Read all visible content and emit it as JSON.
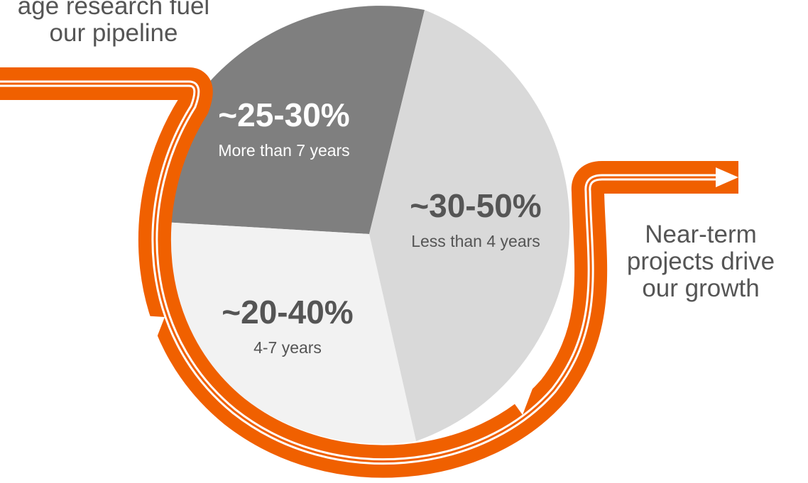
{
  "captions": {
    "left": "age research fuel\nour pipeline",
    "right": "Near-term\nprojects drive\nour growth"
  },
  "slices": {
    "dark": {
      "percent": "~25-30%",
      "label": "More than 7 years",
      "color": "#7f7f7f"
    },
    "mid": {
      "percent": "~30-50%",
      "label": "Less than 4 years",
      "color": "#d9d9d9"
    },
    "light": {
      "percent": "~20-40%",
      "label": "4-7 years",
      "color": "#f2f2f2"
    }
  },
  "colors": {
    "accent": "#f06000",
    "arrow_inner": "#ffffff",
    "text": "#555555"
  },
  "icons": {
    "arrow": "arrow-right-icon"
  }
}
